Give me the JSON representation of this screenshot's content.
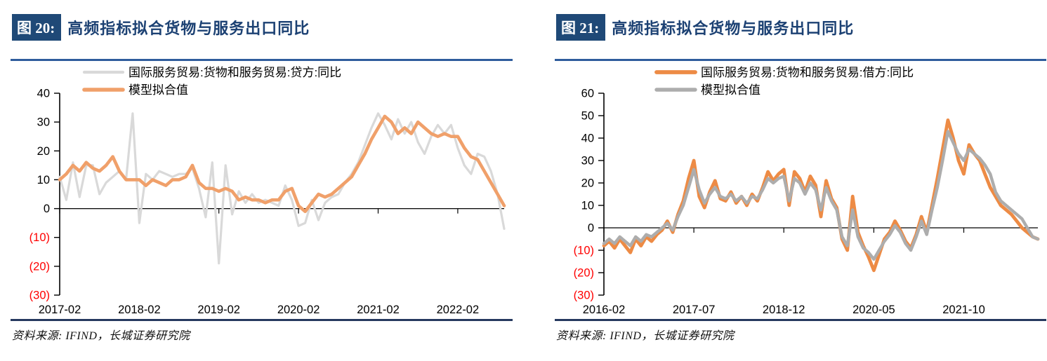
{
  "colors": {
    "header_box": "#1F4977",
    "title_text": "#1C4173",
    "rule_top": "#2E5C9C",
    "rule_bottom": "#26395F",
    "negative_tick": "#FF0000",
    "axis": "#000000",
    "left_actual_gray": "#D9D9D9",
    "left_fit_orange": "#F0A06A",
    "right_actual_orange": "#ED8B45",
    "right_fit_gray": "#ADADAD"
  },
  "figures": [
    {
      "tag": "图 20:",
      "title": "高频指标拟合货物与服务出口同比",
      "source": "资料来源: IFIND，长城证券研究院"
    },
    {
      "tag": "图 21:",
      "title": "高频指标拟合货物与服务出口同比",
      "source": "资料来源: IFIND，长城证券研究院"
    }
  ],
  "chart_data": [
    {
      "type": "line",
      "title": "高频指标拟合货物与服务出口同比",
      "xlabel": "",
      "ylabel": "",
      "ylim": [
        -30,
        40
      ],
      "grid": false,
      "legend_position": "top",
      "legend_x": 105,
      "negative_tick_color": "#FF0000",
      "y_tick_values": [
        40,
        30,
        20,
        10,
        0,
        -10,
        -20,
        -30
      ],
      "y_tick_labels": [
        "40",
        "30",
        "20",
        "10",
        "0",
        "(10)",
        "(20)",
        "(30)"
      ],
      "x_start": "2017-02",
      "x_interval_months": 1,
      "x_tick_labels": [
        "2017-02",
        "2018-02",
        "2019-02",
        "2020-02",
        "2021-02",
        "2022-02"
      ],
      "x_tick_indices": [
        0,
        12,
        24,
        36,
        48,
        60
      ],
      "series": [
        {
          "name": "国际服务贸易:货物和服务贸易:贷方:同比",
          "color": "#D9D9D9",
          "width": 3.2,
          "values": [
            11,
            3,
            16,
            4,
            15,
            15,
            5,
            9,
            11,
            13,
            10,
            33,
            -5,
            12,
            10,
            13,
            12,
            11,
            12,
            12,
            14,
            7,
            -3,
            16,
            -19,
            15,
            -2,
            6,
            2,
            5,
            2,
            3,
            2,
            1,
            8,
            3,
            -6,
            -5,
            3,
            -4,
            2,
            4,
            5,
            9,
            12,
            16,
            22,
            28,
            33,
            29,
            24,
            31,
            26,
            30,
            23,
            19,
            25,
            29,
            26,
            29,
            21,
            15,
            12,
            19,
            18,
            13,
            5,
            -7
          ]
        },
        {
          "name": "模型拟合值",
          "color": "#F0A06A",
          "width": 4.6,
          "values": [
            10,
            12,
            15,
            13,
            16,
            14,
            13,
            15,
            18,
            13,
            10,
            10,
            10,
            8,
            10,
            9,
            8,
            10,
            10,
            11,
            15,
            9,
            7,
            7,
            6,
            7,
            6,
            3,
            4,
            3,
            3,
            2,
            3,
            3,
            6,
            7,
            1,
            -1,
            2,
            5,
            4,
            5,
            7,
            9,
            11,
            15,
            19,
            24,
            28,
            32,
            30,
            26,
            28,
            26,
            30,
            28,
            26,
            25,
            26,
            25,
            25,
            21,
            18,
            17,
            13,
            9,
            5,
            1
          ]
        }
      ]
    },
    {
      "type": "line",
      "title": "高频指标拟合货物与服务出口同比",
      "xlabel": "",
      "ylabel": "",
      "ylim": [
        -30,
        60
      ],
      "grid": false,
      "legend_position": "top",
      "legend_x": 145,
      "negative_tick_color": "#FF0000",
      "y_tick_values": [
        60,
        50,
        40,
        30,
        20,
        10,
        0,
        -10,
        -20,
        -30
      ],
      "y_tick_labels": [
        "60",
        "50",
        "40",
        "30",
        "20",
        "10",
        "0",
        "(10)",
        "(20)",
        "(30)"
      ],
      "x_start": "2016-02",
      "x_interval_months": 1,
      "x_tick_labels": [
        "2016-02",
        "2017-07",
        "2018-12",
        "2020-05",
        "2021-10"
      ],
      "x_tick_indices": [
        0,
        17,
        34,
        51,
        68
      ],
      "series": [
        {
          "name": "国际服务贸易:货物和服务贸易:借方:同比",
          "color": "#ED8B45",
          "width": 4.8,
          "values": [
            -8,
            -6,
            -9,
            -5,
            -8,
            -11,
            -5,
            -8,
            -4,
            -6,
            -3,
            -1,
            3,
            -2,
            6,
            12,
            22,
            30,
            14,
            9,
            16,
            21,
            13,
            12,
            16,
            11,
            14,
            10,
            15,
            12,
            18,
            25,
            21,
            24,
            26,
            10,
            25,
            22,
            16,
            23,
            19,
            5,
            21,
            13,
            9,
            -5,
            -10,
            14,
            -2,
            -8,
            -13,
            -19,
            -12,
            -5,
            -2,
            3,
            -1,
            -6,
            -9,
            -3,
            5,
            -2,
            10,
            22,
            35,
            48,
            40,
            30,
            24,
            37,
            33,
            30,
            24,
            18,
            14,
            10,
            8,
            6,
            3,
            0,
            -2,
            -4,
            -5
          ]
        },
        {
          "name": "模型拟合值",
          "color": "#ADADAD",
          "width": 4.4,
          "values": [
            -7,
            -5,
            -7,
            -4,
            -6,
            -8,
            -4,
            -6,
            -3,
            -4,
            -2,
            0,
            2,
            -1,
            5,
            10,
            18,
            26,
            17,
            11,
            15,
            18,
            14,
            13,
            15,
            12,
            14,
            11,
            14,
            13,
            17,
            22,
            20,
            22,
            23,
            12,
            22,
            20,
            15,
            20,
            17,
            8,
            18,
            12,
            8,
            -4,
            -8,
            8,
            -4,
            -9,
            -11,
            -14,
            -10,
            -6,
            -3,
            1,
            -2,
            -7,
            -10,
            -4,
            3,
            -3,
            8,
            18,
            30,
            43,
            38,
            33,
            30,
            35,
            33,
            31,
            28,
            24,
            16,
            12,
            10,
            8,
            6,
            4,
            0,
            -4,
            -5
          ]
        }
      ]
    }
  ]
}
